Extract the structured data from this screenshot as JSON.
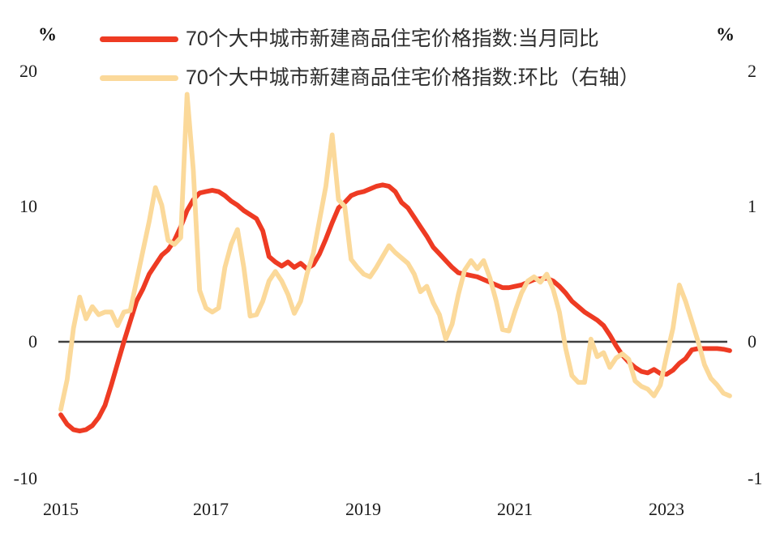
{
  "axes": {
    "left": {
      "unit_label": "%",
      "ticks": [
        "20",
        "10",
        "0",
        "-10"
      ]
    },
    "right": {
      "unit_label": "%",
      "ticks": [
        "2",
        "1",
        "0",
        "-1"
      ]
    },
    "x": {
      "ticks": [
        "2015",
        "2017",
        "2019",
        "2021",
        "2023"
      ]
    }
  },
  "legend": [
    {
      "label": "70个大中城市新建商品住宅价格指数:当月同比",
      "color": "#EE3B23"
    },
    {
      "label": "70个大中城市新建商品住宅价格指数:环比（右轴）",
      "color": "#FBD99A"
    }
  ],
  "chart_data": {
    "type": "line",
    "x_interval": "monthly",
    "x_start": "2015-01",
    "x_end": "2023-11",
    "x_axis_ticks": [
      2015,
      2017,
      2019,
      2021,
      2023
    ],
    "left_axis": {
      "label": "%",
      "range": [
        -10,
        20
      ],
      "ticks": [
        20,
        10,
        0,
        -10
      ]
    },
    "right_axis": {
      "label": "%",
      "range": [
        -1,
        2
      ],
      "ticks": [
        2,
        1,
        0,
        -1
      ]
    },
    "grid": false,
    "zero_line": {
      "show": true,
      "color": "#3F3F3F"
    },
    "legend_position": "top-left",
    "series": [
      {
        "name": "70个大中城市新建商品住宅价格指数:当月同比",
        "axis": "left",
        "color": "#EE3B23",
        "values": [
          -5.4,
          -6.1,
          -6.5,
          -6.6,
          -6.5,
          -6.2,
          -5.6,
          -4.7,
          -3.2,
          -1.6,
          0.0,
          1.5,
          3.0,
          3.9,
          5.0,
          5.7,
          6.4,
          6.8,
          7.5,
          8.5,
          9.7,
          10.5,
          11.0,
          11.1,
          11.2,
          11.1,
          10.8,
          10.4,
          10.1,
          9.7,
          9.4,
          9.1,
          8.2,
          6.3,
          5.9,
          5.6,
          5.9,
          5.5,
          5.8,
          5.4,
          5.7,
          6.5,
          7.6,
          8.8,
          9.9,
          10.3,
          10.8,
          11.0,
          11.1,
          11.3,
          11.5,
          11.6,
          11.5,
          11.1,
          10.3,
          9.9,
          9.2,
          8.5,
          7.8,
          7.0,
          6.5,
          6.0,
          5.5,
          5.1,
          5.0,
          4.9,
          4.8,
          4.6,
          4.4,
          4.2,
          4.0,
          4.0,
          4.1,
          4.2,
          4.4,
          4.6,
          4.65,
          4.7,
          4.5,
          4.1,
          3.6,
          3.0,
          2.6,
          2.2,
          1.9,
          1.6,
          1.2,
          0.5,
          -0.3,
          -1.0,
          -1.5,
          -1.9,
          -2.2,
          -2.3,
          -2.05,
          -2.35,
          -2.4,
          -2.1,
          -1.6,
          -1.25,
          -0.6,
          -0.5,
          -0.5,
          -0.5,
          -0.5,
          -0.55,
          -0.65
        ]
      },
      {
        "name": "70个大中城市新建商品住宅价格指数:环比（右轴）",
        "axis": "right",
        "color": "#FBD99A",
        "values": [
          -0.5,
          -0.28,
          0.1,
          0.33,
          0.17,
          0.26,
          0.2,
          0.22,
          0.22,
          0.12,
          0.22,
          0.23,
          0.45,
          0.67,
          0.89,
          1.14,
          1.01,
          0.75,
          0.72,
          0.77,
          1.83,
          1.27,
          0.38,
          0.25,
          0.22,
          0.25,
          0.55,
          0.72,
          0.83,
          0.55,
          0.19,
          0.2,
          0.3,
          0.45,
          0.52,
          0.45,
          0.35,
          0.21,
          0.3,
          0.5,
          0.65,
          0.9,
          1.15,
          1.53,
          1.05,
          1.0,
          0.61,
          0.55,
          0.5,
          0.48,
          0.55,
          0.63,
          0.71,
          0.66,
          0.62,
          0.58,
          0.5,
          0.37,
          0.41,
          0.29,
          0.2,
          0.02,
          0.13,
          0.35,
          0.53,
          0.6,
          0.54,
          0.6,
          0.47,
          0.3,
          0.09,
          0.08,
          0.23,
          0.36,
          0.45,
          0.48,
          0.44,
          0.5,
          0.39,
          0.22,
          -0.05,
          -0.25,
          -0.3,
          -0.3,
          0.02,
          -0.11,
          -0.08,
          -0.19,
          -0.12,
          -0.09,
          -0.13,
          -0.29,
          -0.33,
          -0.35,
          -0.4,
          -0.32,
          -0.1,
          0.1,
          0.42,
          0.3,
          0.15,
          0.0,
          -0.17,
          -0.27,
          -0.32,
          -0.38,
          -0.4
        ]
      }
    ]
  }
}
